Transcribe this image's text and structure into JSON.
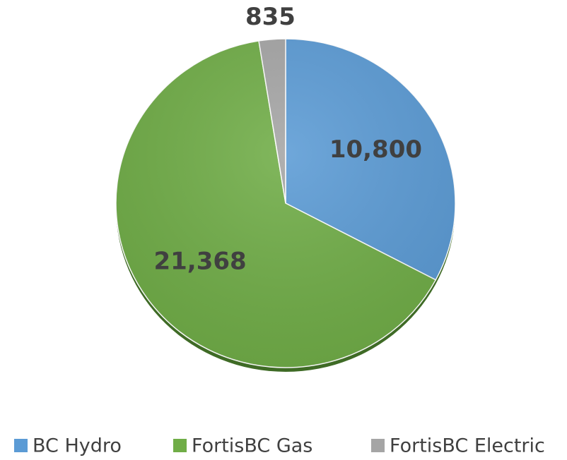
{
  "chart_data": {
    "type": "pie",
    "categories": [
      "BC Hydro",
      "FortisBC Gas",
      "FortisBC Electric"
    ],
    "values": [
      10800,
      21368,
      835
    ],
    "value_labels": [
      "10,800",
      "21,368",
      "835"
    ],
    "colors": [
      "#5b9bd5",
      "#70ad47",
      "#a5a5a5"
    ],
    "legend": "bottom"
  }
}
